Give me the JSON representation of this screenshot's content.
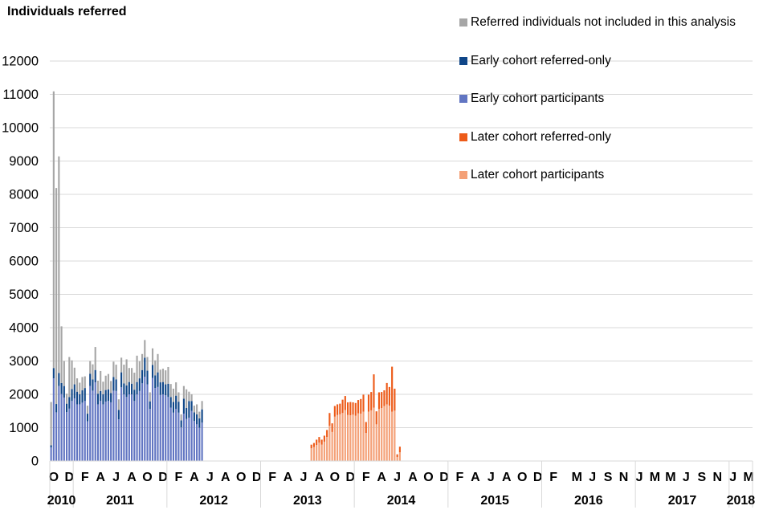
{
  "chart_data": {
    "type": "bar",
    "stacked": true,
    "ylabel": "Individuals referred",
    "ylim": [
      0,
      12000
    ],
    "yticks": [
      0,
      1000,
      2000,
      3000,
      4000,
      5000,
      6000,
      7000,
      8000,
      9000,
      10000,
      11000,
      12000
    ],
    "grid": true,
    "legend_position": "top-right",
    "month_labels": [
      "O",
      "",
      "D",
      "",
      "F",
      "",
      "A",
      "",
      "J",
      "",
      "A",
      "",
      "O",
      "",
      "D",
      "",
      "F",
      "",
      "A",
      "",
      "J",
      "",
      "A",
      "",
      "O",
      "",
      "D",
      "",
      "F",
      "",
      "A",
      "",
      "J",
      "",
      "A",
      "",
      "O",
      "",
      "D",
      "",
      "F",
      "",
      "A",
      "",
      "J",
      "",
      "A",
      "",
      "O",
      "",
      "D",
      "",
      "F",
      "",
      "A",
      "",
      "J",
      "",
      "A",
      "",
      "O",
      "",
      "D",
      "",
      "F",
      "",
      "",
      "M",
      "",
      "J",
      "",
      "S",
      "",
      "N",
      "",
      "J",
      "",
      "M",
      "",
      "M",
      "",
      "J",
      "",
      "S",
      "",
      "N",
      "",
      "J",
      "",
      "M"
    ],
    "years": [
      {
        "label": "2010",
        "start": 0,
        "end": 3
      },
      {
        "label": "2011",
        "start": 3,
        "end": 15
      },
      {
        "label": "2012",
        "start": 15,
        "end": 27
      },
      {
        "label": "2013",
        "start": 27,
        "end": 39
      },
      {
        "label": "2014",
        "start": 39,
        "end": 51
      },
      {
        "label": "2015",
        "start": 51,
        "end": 63
      },
      {
        "label": "2016",
        "start": 63,
        "end": 75
      },
      {
        "label": "2017",
        "start": 75,
        "end": 87
      },
      {
        "label": "2018",
        "start": 87,
        "end": 90
      }
    ],
    "series": [
      {
        "name": "Later cohort participants",
        "color": "#f4a178",
        "values": [
          0,
          0,
          0,
          0,
          0,
          0,
          0,
          0,
          0,
          0,
          0,
          0,
          0,
          0,
          0,
          0,
          0,
          0,
          0,
          0,
          0,
          0,
          0,
          0,
          0,
          0,
          0,
          0,
          0,
          0,
          0,
          0,
          0,
          0,
          0,
          0,
          0,
          0,
          0,
          0,
          0,
          0,
          0,
          0,
          0,
          0,
          0,
          0,
          0,
          0,
          0,
          0,
          0,
          0,
          0,
          0,
          0,
          0,
          0,
          0,
          0,
          0,
          0,
          0,
          0,
          0,
          0,
          0,
          0,
          0,
          0,
          0,
          0,
          0,
          0,
          0,
          0,
          0,
          0,
          0,
          0,
          0,
          0,
          0,
          0,
          0,
          0,
          0,
          0,
          0,
          0,
          0,
          0,
          0,
          0,
          0,
          0,
          0,
          0,
          0,
          380,
          420,
          480,
          550,
          490,
          580,
          720,
          1060,
          870,
          1330,
          1380,
          1400,
          1440,
          1530,
          1380,
          1370,
          1390,
          1360,
          1430,
          1420,
          1480,
          840,
          1480,
          1520,
          1600,
          1100,
          1560,
          1590,
          1650,
          1700,
          1660,
          1480,
          1510,
          120,
          260,
          0,
          0
        ]
      },
      {
        "name": "Later cohort referred-only",
        "color": "#ed5b19",
        "values": [
          0,
          0,
          0,
          0,
          0,
          0,
          0,
          0,
          0,
          0,
          0,
          0,
          0,
          0,
          0,
          0,
          0,
          0,
          0,
          0,
          0,
          0,
          0,
          0,
          0,
          0,
          0,
          0,
          0,
          0,
          0,
          0,
          0,
          0,
          0,
          0,
          0,
          0,
          0,
          0,
          0,
          0,
          0,
          0,
          0,
          0,
          0,
          0,
          0,
          0,
          0,
          0,
          0,
          0,
          0,
          0,
          0,
          0,
          0,
          0,
          0,
          0,
          0,
          0,
          0,
          0,
          0,
          0,
          0,
          0,
          0,
          0,
          0,
          0,
          0,
          0,
          0,
          0,
          0,
          0,
          0,
          0,
          0,
          0,
          0,
          0,
          0,
          0,
          0,
          0,
          0,
          0,
          0,
          0,
          0,
          0,
          0,
          0,
          0,
          0,
          110,
          120,
          160,
          170,
          150,
          180,
          210,
          380,
          260,
          320,
          320,
          320,
          400,
          420,
          380,
          400,
          370,
          380,
          400,
          440,
          510,
          330,
          510,
          550,
          1000,
          390,
          500,
          480,
          470,
          640,
          560,
          1350,
          660,
          80,
          170,
          0,
          0
        ]
      },
      {
        "name": "Early cohort participants",
        "color": "#6175c2",
        "values": [
          410,
          2480,
          1460,
          2250,
          2010,
          1900,
          1470,
          1570,
          1800,
          1880,
          1700,
          1700,
          1750,
          1800,
          1190,
          2250,
          2110,
          2360,
          1700,
          1800,
          1700,
          1780,
          1800,
          1760,
          2110,
          2100,
          1250,
          2210,
          2000,
          1920,
          2000,
          2000,
          1800,
          2000,
          2100,
          2330,
          2530,
          2300,
          1560,
          2490,
          2190,
          2220,
          1980,
          2000,
          1970,
          1920,
          1600,
          1450,
          1560,
          1450,
          1010,
          1420,
          1260,
          1300,
          1500,
          1200,
          1100,
          1000,
          1150,
          0,
          0,
          0,
          0,
          0,
          0,
          0,
          0,
          0,
          0,
          0,
          0,
          0,
          0,
          0,
          0,
          0,
          0,
          0,
          0,
          0,
          0,
          0,
          0,
          0,
          0,
          0,
          0,
          0,
          0,
          0,
          0,
          0,
          0,
          0,
          0,
          0,
          0,
          0,
          0,
          0,
          0,
          0,
          0,
          0,
          0,
          0,
          0,
          0,
          0,
          0,
          0,
          0,
          0,
          0,
          0,
          0,
          0,
          0,
          0,
          0,
          0,
          0,
          0,
          0,
          0,
          0,
          0,
          0,
          0,
          0,
          0
        ]
      },
      {
        "name": "Early cohort referred-only",
        "color": "#0f4688",
        "values": [
          60,
          310,
          250,
          390,
          330,
          350,
          250,
          350,
          360,
          420,
          380,
          300,
          370,
          390,
          230,
          370,
          340,
          370,
          320,
          300,
          300,
          350,
          350,
          280,
          410,
          350,
          280,
          450,
          330,
          350,
          370,
          320,
          340,
          370,
          380,
          400,
          570,
          410,
          230,
          390,
          380,
          440,
          380,
          370,
          330,
          400,
          320,
          320,
          400,
          330,
          210,
          450,
          330,
          500,
          300,
          260,
          300,
          280,
          400,
          0,
          0,
          0,
          0,
          0,
          0,
          0,
          0,
          0,
          0,
          0,
          0,
          0,
          0,
          0,
          0,
          0,
          0,
          0,
          0,
          0,
          0,
          0,
          0,
          0,
          0,
          0,
          0,
          0,
          0,
          0,
          0,
          0,
          0,
          0,
          0,
          0,
          0,
          0,
          0,
          0,
          0,
          0,
          0,
          0,
          0,
          0,
          0,
          0,
          0,
          0,
          0,
          0,
          0,
          0,
          0,
          0,
          0,
          0,
          0,
          0,
          0,
          0,
          0,
          0,
          0,
          0,
          0,
          0,
          0,
          0,
          0
        ]
      },
      {
        "name": "Referred individuals not included in this analysis",
        "color": "#a6a6a6",
        "values": [
          1300,
          8300,
          6480,
          6500,
          1700,
          750,
          300,
          1200,
          860,
          500,
          400,
          350,
          400,
          350,
          240,
          380,
          450,
          690,
          390,
          600,
          380,
          430,
          460,
          360,
          460,
          440,
          320,
          440,
          560,
          780,
          420,
          470,
          510,
          790,
          510,
          480,
          530,
          410,
          270,
          500,
          450,
          550,
          380,
          400,
          420,
          500,
          390,
          400,
          400,
          280,
          180,
          380,
          560,
          280,
          200,
          200,
          300,
          200,
          250,
          0,
          0,
          0,
          0,
          0,
          0,
          0,
          0,
          0,
          0,
          0,
          0,
          0,
          0,
          0,
          0,
          0,
          0,
          0,
          0,
          0,
          0,
          0,
          0,
          0,
          0,
          0,
          0,
          0,
          0,
          0,
          0,
          0,
          0,
          0,
          0,
          0,
          0,
          0,
          0,
          0,
          0,
          0,
          0,
          0,
          0,
          0,
          0,
          0,
          0,
          0,
          0,
          0,
          0,
          0,
          0,
          0,
          0,
          0,
          0,
          0,
          0,
          0,
          0,
          0,
          0,
          0,
          0,
          0,
          0,
          0,
          0
        ]
      }
    ]
  }
}
